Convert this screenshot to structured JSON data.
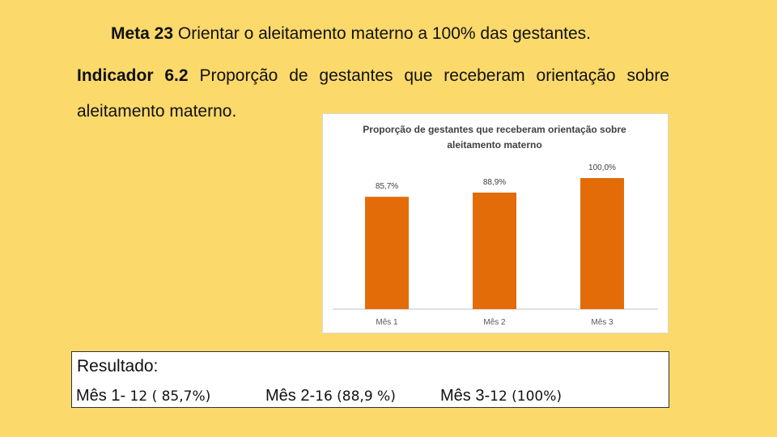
{
  "header": {
    "meta_bold": "Meta 23",
    "meta_text": " Orientar o aleitamento materno a 100% das gestantes.",
    "indicator_bold": "Indicador 6.2",
    "indicator_text": " Proporção de gestantes que receberam orientação sobre aleitamento materno."
  },
  "chart_data": {
    "type": "bar",
    "title_line1": "Proporção de gestantes que receberam orientação sobre",
    "title_line2": "aleitamento materno",
    "categories": [
      "Mês 1",
      "Mês 2",
      "Mês 3"
    ],
    "values": [
      85.7,
      88.9,
      100.0
    ],
    "data_labels": [
      "85,7%",
      "88,9%",
      "100,0%"
    ],
    "ylim": [
      0,
      100
    ],
    "grid": false,
    "legend": "none",
    "bar_color": "#E36C09"
  },
  "results": {
    "title": "Resultado:",
    "items": [
      {
        "prefix": "Mês 1-",
        "value": " 12 ( 85,7%)"
      },
      {
        "prefix": "Mês 2-",
        "value": "16 (88,9 %)"
      },
      {
        "prefix": "Mês 3-",
        "value": "12 (100%)"
      }
    ]
  }
}
